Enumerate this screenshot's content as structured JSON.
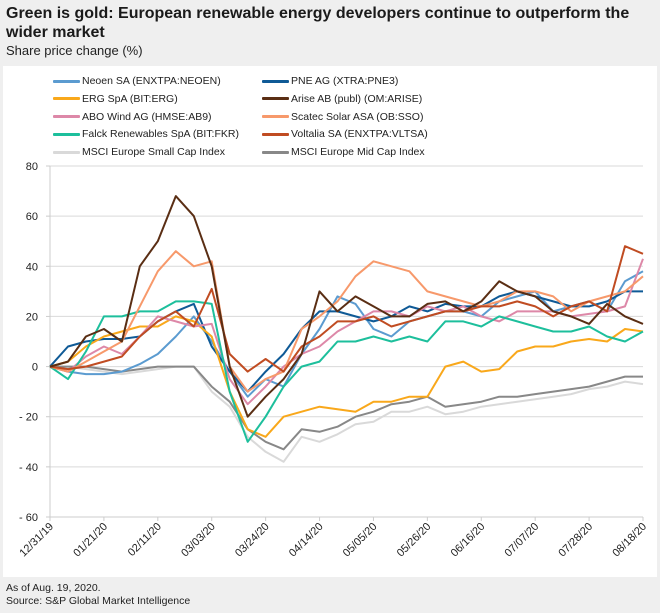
{
  "header": {
    "title": "Green is gold: European renewable energy developers continue to outperform the wider market",
    "subtitle": "Share price change (%)"
  },
  "footer": {
    "note": "As of Aug. 19, 2020.",
    "source": "Source: S&P Global Market Intelligence"
  },
  "chart_data": {
    "type": "line",
    "title": "Green is gold: European renewable energy developers continue to outperform the wider market",
    "subtitle": "Share price change (%)",
    "xlabel": "",
    "ylabel": "Share price change (%)",
    "ylim": [
      -60,
      80
    ],
    "yticks": [
      80,
      60,
      40,
      20,
      0,
      -20,
      -40,
      -60
    ],
    "xtick_labels": [
      "12/31/19",
      "01/21/20",
      "02/11/20",
      "03/03/20",
      "03/24/20",
      "04/14/20",
      "05/05/20",
      "05/26/20",
      "06/16/20",
      "07/07/20",
      "07/28/20",
      "08/18/20"
    ],
    "x_days_from_start": [
      0,
      7,
      14,
      21,
      28,
      35,
      42,
      49,
      56,
      63,
      70,
      77,
      84,
      91,
      98,
      105,
      112,
      119,
      126,
      133,
      140,
      147,
      154,
      161,
      168,
      175,
      182,
      189,
      196,
      203,
      210,
      217,
      224,
      231
    ],
    "grid": true,
    "legend_position": "top",
    "series": [
      {
        "name": "Neoen SA (ENXTPA:NEOEN)",
        "color": "#5b9bd0",
        "values": [
          0,
          -2,
          -3,
          -3,
          -2,
          1,
          5,
          12,
          20,
          10,
          -2,
          -12,
          -5,
          -8,
          5,
          15,
          28,
          25,
          15,
          12,
          18,
          20,
          22,
          22,
          20,
          26,
          28,
          30,
          22,
          24,
          26,
          22,
          34,
          38
        ]
      },
      {
        "name": "PNE AG (XTRA:PNE3)",
        "color": "#0f5a96",
        "values": [
          0,
          8,
          10,
          11,
          11,
          12,
          18,
          22,
          25,
          8,
          -2,
          -10,
          -2,
          5,
          15,
          22,
          22,
          20,
          18,
          20,
          24,
          22,
          25,
          24,
          24,
          28,
          30,
          28,
          26,
          24,
          24,
          26,
          30,
          30
        ]
      },
      {
        "name": "ERG SpA (BIT:ERG)",
        "color": "#f9a81b",
        "values": [
          0,
          2,
          8,
          12,
          14,
          16,
          16,
          20,
          18,
          12,
          -10,
          -25,
          -28,
          -20,
          -18,
          -16,
          -17,
          -18,
          -14,
          -14,
          -12,
          -12,
          0,
          2,
          -2,
          -1,
          6,
          8,
          8,
          10,
          11,
          10,
          15,
          14
        ]
      },
      {
        "name": "Arise AB (publ) (OM:ARISE)",
        "color": "#5a2e14",
        "values": [
          0,
          2,
          12,
          15,
          10,
          40,
          50,
          68,
          60,
          40,
          0,
          -20,
          -12,
          -5,
          5,
          30,
          22,
          28,
          24,
          20,
          20,
          25,
          26,
          22,
          26,
          34,
          30,
          28,
          22,
          20,
          17,
          25,
          20,
          17
        ]
      },
      {
        "name": "ABO Wind AG (HMSE:AB9)",
        "color": "#dd88a8",
        "values": [
          0,
          -2,
          4,
          8,
          5,
          12,
          20,
          18,
          16,
          17,
          -5,
          -15,
          -8,
          0,
          5,
          8,
          14,
          18,
          22,
          22,
          20,
          24,
          22,
          24,
          20,
          18,
          22,
          22,
          22,
          20,
          21,
          22,
          24,
          43
        ]
      },
      {
        "name": "Scatec Solar ASA (OB:SSO)",
        "color": "#f7996b",
        "values": [
          0,
          -2,
          2,
          6,
          10,
          24,
          38,
          46,
          40,
          42,
          0,
          -10,
          -5,
          -2,
          15,
          20,
          26,
          36,
          42,
          40,
          38,
          30,
          28,
          26,
          24,
          26,
          30,
          30,
          28,
          22,
          26,
          28,
          30,
          36
        ]
      },
      {
        "name": "Falck Renewables SpA (BIT:FKR)",
        "color": "#1dbf9c",
        "values": [
          0,
          -5,
          6,
          20,
          20,
          22,
          22,
          26,
          26,
          25,
          -10,
          -30,
          -20,
          -8,
          0,
          2,
          10,
          10,
          12,
          10,
          12,
          10,
          18,
          18,
          16,
          20,
          18,
          16,
          14,
          14,
          16,
          12,
          10,
          14
        ]
      },
      {
        "name": "Voltalia SA (ENXTPA:VLTSA)",
        "color": "#c04c22",
        "values": [
          0,
          -1,
          0,
          2,
          4,
          12,
          18,
          22,
          16,
          31,
          5,
          -2,
          3,
          -2,
          8,
          12,
          18,
          18,
          20,
          16,
          18,
          20,
          22,
          22,
          24,
          24,
          26,
          24,
          20,
          24,
          26,
          22,
          48,
          45
        ]
      },
      {
        "name": "MSCI Europe Small Cap Index",
        "color": "#d9d9d9",
        "values": [
          0,
          0,
          -1,
          -2,
          -3,
          -2,
          -1,
          0,
          0,
          -10,
          -16,
          -28,
          -34,
          -38,
          -28,
          -30,
          -27,
          -23,
          -22,
          -18,
          -18,
          -16,
          -19,
          -18,
          -16,
          -15,
          -14,
          -13,
          -12,
          -11,
          -9,
          -8,
          -6,
          -7
        ]
      },
      {
        "name": "MSCI Europe Mid Cap Index",
        "color": "#888888",
        "values": [
          0,
          0,
          0,
          -1,
          -2,
          -1,
          0,
          0,
          0,
          -8,
          -14,
          -25,
          -30,
          -33,
          -25,
          -26,
          -24,
          -20,
          -18,
          -15,
          -14,
          -12,
          -16,
          -15,
          -14,
          -12,
          -12,
          -11,
          -10,
          -9,
          -8,
          -6,
          -4,
          -4
        ]
      }
    ]
  }
}
